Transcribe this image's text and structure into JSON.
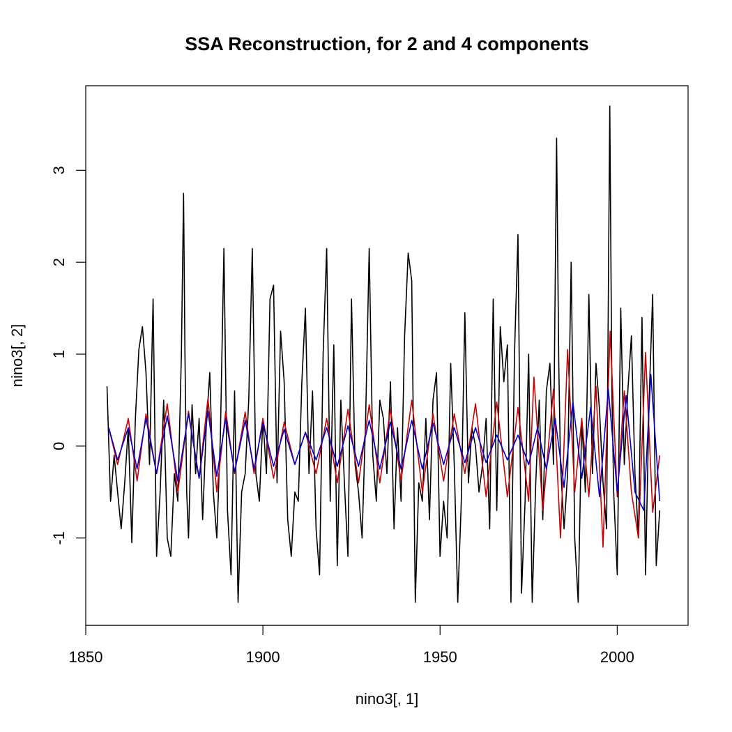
{
  "chart_data": {
    "type": "line",
    "title": "SSA Reconstruction, for 2 and 4 components",
    "xlabel": "nino3[, 1]",
    "ylabel": "nino3[, 2]",
    "xlim": [
      1850,
      2020
    ],
    "ylim": [
      -1.95,
      3.92
    ],
    "x_ticks": [
      1850,
      1900,
      1950,
      2000
    ],
    "y_ticks": [
      -1,
      0,
      1,
      2,
      3
    ],
    "grid": false,
    "legend": "none",
    "series": [
      {
        "color": "#000000",
        "x": [
          1856,
          1857,
          1858,
          1859,
          1860,
          1861,
          1862,
          1863,
          1864,
          1865,
          1866,
          1867,
          1868,
          1869,
          1870,
          1871,
          1872,
          1873,
          1874,
          1875,
          1876,
          1877,
          1877.6,
          1878,
          1878.5,
          1879,
          1880,
          1881,
          1882,
          1883,
          1884,
          1885,
          1886,
          1887,
          1888,
          1889,
          1890,
          1891,
          1892,
          1893,
          1894,
          1895,
          1896,
          1897,
          1898,
          1899,
          1900,
          1901,
          1902,
          1903,
          1904,
          1905,
          1906,
          1907,
          1908,
          1909,
          1910,
          1911,
          1912,
          1913,
          1914,
          1915,
          1916,
          1917,
          1918,
          1919,
          1920,
          1921,
          1922,
          1923,
          1924,
          1925,
          1926,
          1927,
          1928,
          1929,
          1930,
          1931,
          1932,
          1933,
          1934,
          1935,
          1936,
          1937,
          1938,
          1939,
          1940,
          1941,
          1942,
          1943,
          1944,
          1945,
          1946,
          1947,
          1948,
          1949,
          1950,
          1951,
          1952,
          1953,
          1954,
          1955,
          1956,
          1957,
          1958,
          1959,
          1960,
          1961,
          1962,
          1963,
          1964,
          1965,
          1966,
          1967,
          1968,
          1969,
          1970,
          1971,
          1972,
          1973,
          1974,
          1975,
          1976,
          1977,
          1978,
          1979,
          1980,
          1981,
          1982,
          1982.9,
          1983.5,
          1984,
          1985,
          1986,
          1987,
          1988,
          1989,
          1990,
          1991,
          1992,
          1993,
          1994,
          1995,
          1996,
          1997,
          1997.9,
          1998.5,
          1999,
          2000,
          2001,
          2002,
          2003,
          2004,
          2005,
          2006,
          2007,
          2008,
          2009,
          2010,
          2011,
          2012
        ],
        "y": [
          0.65,
          -0.6,
          -0.1,
          -0.5,
          -0.9,
          -0.4,
          0.2,
          -1.05,
          0.3,
          1.05,
          1.3,
          0.8,
          -0.2,
          1.6,
          -1.2,
          -0.5,
          0.5,
          -1.0,
          -1.2,
          -0.3,
          -0.6,
          1.0,
          2.75,
          1.0,
          -0.5,
          -1.0,
          0.45,
          -0.3,
          0.3,
          -0.8,
          0.2,
          0.8,
          -0.5,
          -1.0,
          0.1,
          2.15,
          -0.7,
          -1.4,
          0.6,
          -1.7,
          -0.5,
          -0.3,
          0.5,
          2.15,
          -0.3,
          -0.6,
          0.3,
          -0.3,
          1.6,
          1.75,
          -0.4,
          1.25,
          0.7,
          -0.8,
          -1.2,
          -0.5,
          -0.6,
          0.7,
          1.5,
          -0.3,
          0.6,
          -0.9,
          -1.4,
          1.0,
          2.15,
          -0.6,
          1.1,
          -1.3,
          0.5,
          -0.4,
          -1.2,
          1.6,
          -0.2,
          -0.5,
          -1.0,
          0.3,
          2.15,
          -0.1,
          -0.6,
          0.5,
          0.3,
          -0.3,
          0.7,
          -0.9,
          0.2,
          -0.6,
          1.2,
          2.1,
          1.8,
          -1.7,
          -0.4,
          -0.6,
          0.3,
          -0.8,
          0.5,
          0.8,
          -1.2,
          -0.6,
          -1.0,
          0.9,
          -0.2,
          -1.7,
          -0.6,
          1.45,
          -0.4,
          0.2,
          0.0,
          -0.5,
          -0.2,
          0.3,
          -0.9,
          1.6,
          -0.7,
          1.3,
          0.7,
          1.1,
          -1.7,
          1.0,
          2.3,
          -1.6,
          -0.6,
          1.0,
          -1.7,
          -0.4,
          0.5,
          -0.8,
          0.6,
          0.9,
          -0.2,
          3.35,
          0.9,
          -0.2,
          -0.9,
          -0.3,
          2.0,
          -1.0,
          -1.7,
          0.3,
          -0.5,
          1.65,
          -0.3,
          0.9,
          0.4,
          -0.4,
          -0.9,
          3.7,
          0.6,
          -0.5,
          -1.4,
          1.5,
          -0.2,
          0.6,
          1.2,
          -0.3,
          -1.0,
          1.4,
          -1.4,
          0.5,
          1.65,
          -1.3,
          -0.7
        ]
      },
      {
        "color": "#cc0000",
        "x": [
          1856.5,
          1859,
          1862,
          1864.5,
          1867,
          1870,
          1873,
          1876,
          1879,
          1882,
          1884.5,
          1887,
          1889.5,
          1892,
          1895,
          1897.5,
          1900,
          1903,
          1906,
          1909,
          1912,
          1915,
          1918,
          1921,
          1924,
          1927,
          1930,
          1933,
          1936,
          1939,
          1942,
          1945,
          1948,
          1951,
          1954,
          1957,
          1960,
          1963,
          1966,
          1969,
          1972,
          1975,
          1976.5,
          1979,
          1982,
          1984,
          1986,
          1988,
          1990,
          1992,
          1994,
          1996,
          1998,
          2000,
          2002,
          2004,
          2006,
          2008,
          2010,
          2012
        ],
        "y": [
          0.2,
          -0.2,
          0.3,
          -0.38,
          0.35,
          -0.3,
          0.46,
          -0.5,
          0.38,
          -0.35,
          0.52,
          -0.5,
          0.38,
          -0.3,
          0.37,
          -0.3,
          0.3,
          -0.35,
          0.26,
          -0.2,
          0.15,
          -0.3,
          0.3,
          -0.4,
          0.4,
          -0.4,
          0.45,
          -0.4,
          0.4,
          -0.38,
          0.5,
          -0.5,
          0.35,
          -0.38,
          0.35,
          -0.3,
          0.46,
          -0.55,
          0.48,
          -0.55,
          0.42,
          -0.6,
          0.75,
          -0.7,
          0.62,
          -1.0,
          1.05,
          -0.5,
          0.3,
          -0.55,
          0.65,
          -1.1,
          1.25,
          -0.55,
          0.6,
          -0.5,
          -1.0,
          1.02,
          -0.72,
          -0.1
        ]
      },
      {
        "color": "#0000cc",
        "x": [
          1856.5,
          1859,
          1862,
          1864.5,
          1867,
          1870,
          1873,
          1876,
          1879,
          1882,
          1884.5,
          1887,
          1889.5,
          1892,
          1895,
          1897.5,
          1900,
          1903,
          1906,
          1909,
          1912,
          1915,
          1918,
          1921,
          1924,
          1927,
          1930,
          1933,
          1936,
          1939,
          1942,
          1945,
          1948,
          1951,
          1954,
          1957,
          1960,
          1963,
          1966,
          1969,
          1972,
          1975,
          1977.5,
          1980,
          1982.5,
          1985,
          1987.5,
          1990,
          1992.5,
          1995,
          1997.5,
          2000,
          2002.5,
          2005,
          2007.5,
          2009.5,
          2012
        ],
        "y": [
          0.2,
          -0.15,
          0.2,
          -0.25,
          0.3,
          -0.3,
          0.33,
          -0.38,
          0.35,
          -0.35,
          0.38,
          -0.33,
          0.3,
          -0.28,
          0.28,
          -0.25,
          0.25,
          -0.22,
          0.18,
          -0.2,
          0.15,
          -0.15,
          0.2,
          -0.22,
          0.22,
          -0.22,
          0.28,
          -0.25,
          0.26,
          -0.25,
          0.28,
          -0.25,
          0.25,
          -0.2,
          0.2,
          -0.18,
          0.2,
          -0.18,
          0.12,
          -0.15,
          0.12,
          -0.2,
          0.2,
          -0.25,
          0.3,
          -0.45,
          0.48,
          -0.35,
          0.42,
          -0.55,
          0.62,
          -0.5,
          0.55,
          -0.5,
          -0.7,
          0.78,
          -0.6
        ]
      }
    ]
  }
}
